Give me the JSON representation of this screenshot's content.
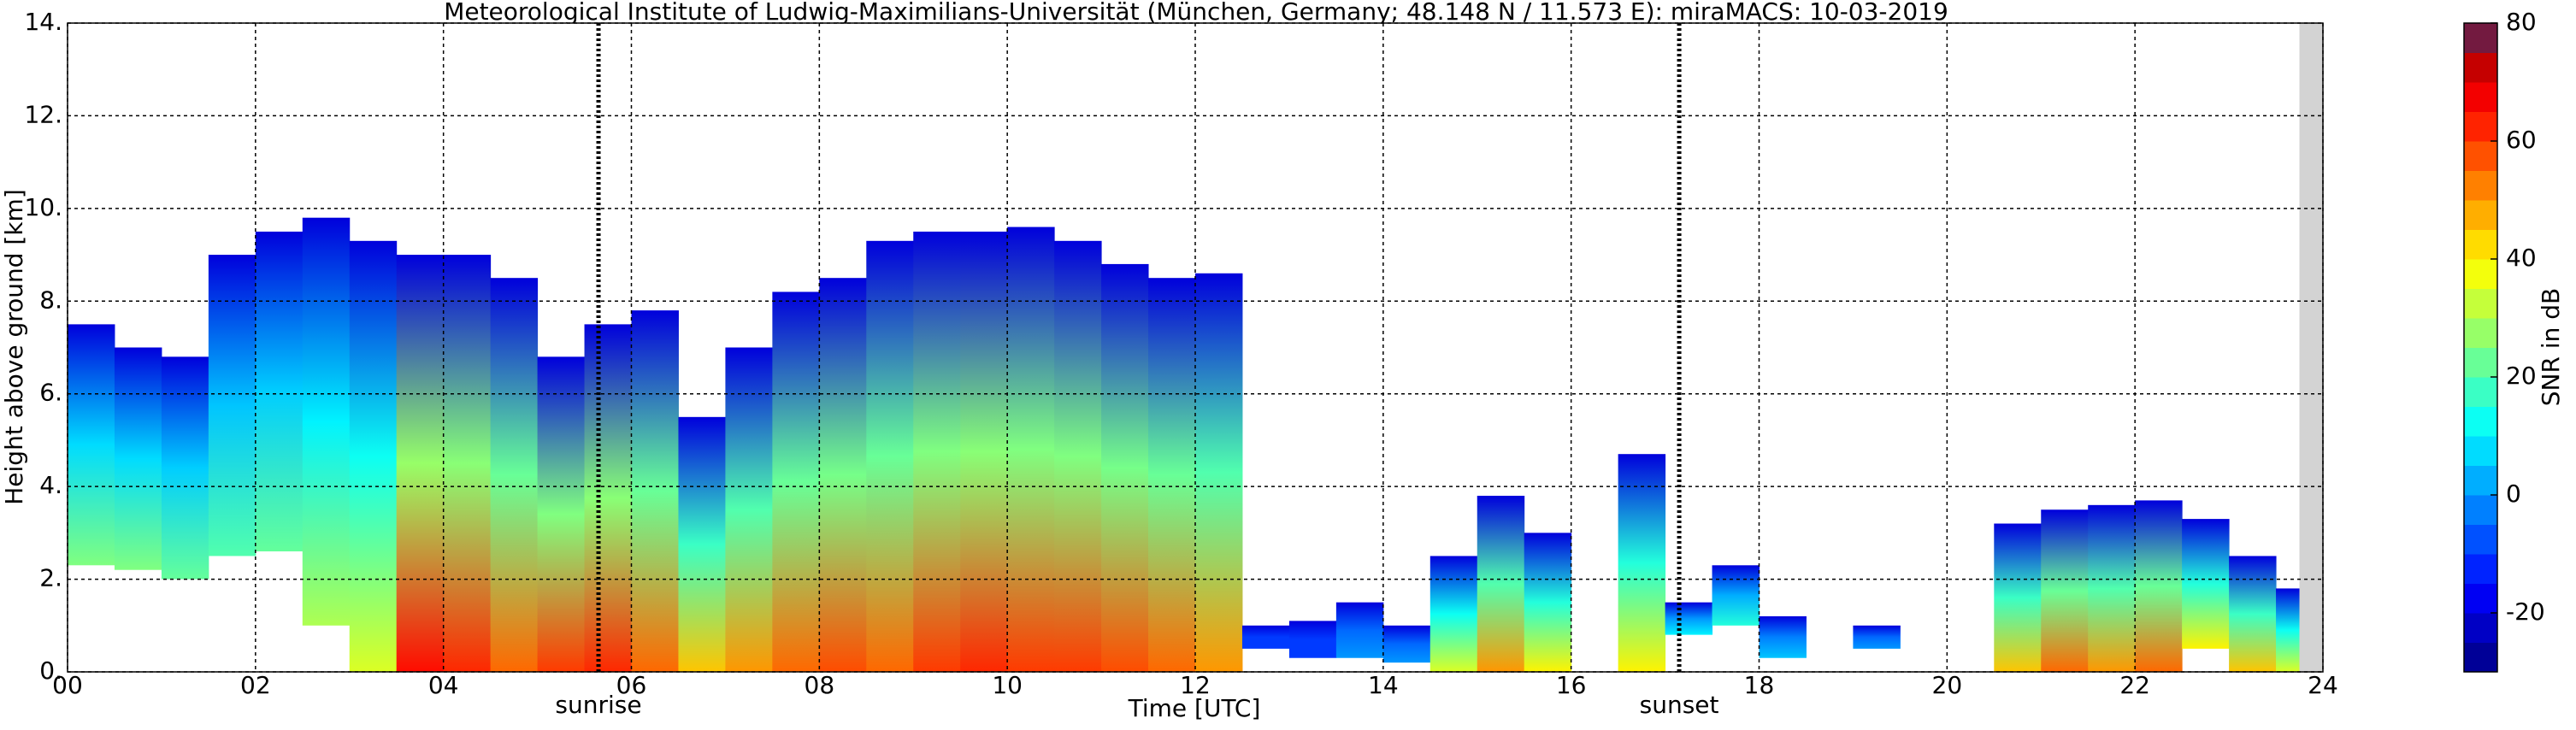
{
  "chart_data": {
    "type": "time-height",
    "title": "Meteorological Institute of Ludwig-Maximilians-Universität (München, Germany; 48.148 N / 11.573 E):    miraMACS: 10-03-2019",
    "xlabel": "Time [UTC]",
    "ylabel": "Height above ground [km]",
    "colorbar_label": "SNR in dB",
    "xlim": [
      0,
      24
    ],
    "xticks": [
      {
        "value": 0,
        "label": "00"
      },
      {
        "value": 2,
        "label": "02"
      },
      {
        "value": 4,
        "label": "04"
      },
      {
        "value": 6,
        "label": "06"
      },
      {
        "value": 8,
        "label": "08"
      },
      {
        "value": 10,
        "label": "10"
      },
      {
        "value": 12,
        "label": "12"
      },
      {
        "value": 14,
        "label": "14"
      },
      {
        "value": 16,
        "label": "16"
      },
      {
        "value": 18,
        "label": "18"
      },
      {
        "value": 20,
        "label": "20"
      },
      {
        "value": 22,
        "label": "22"
      },
      {
        "value": 24,
        "label": "24"
      }
    ],
    "ylim": [
      0,
      14
    ],
    "yticks": [
      {
        "value": 0,
        "label": "0."
      },
      {
        "value": 2,
        "label": "2."
      },
      {
        "value": 4,
        "label": "4."
      },
      {
        "value": 6,
        "label": "6."
      },
      {
        "value": 8,
        "label": "8."
      },
      {
        "value": 10,
        "label": "10."
      },
      {
        "value": 12,
        "label": "12."
      },
      {
        "value": 14,
        "label": "14."
      }
    ],
    "clim": [
      -30,
      80
    ],
    "cticks": [
      -20,
      0,
      20,
      40,
      60,
      80
    ],
    "grid": true,
    "column_width": 0.5,
    "x": [
      0,
      0.5,
      1,
      1.5,
      2,
      2.5,
      3,
      3.5,
      4,
      4.5,
      5,
      5.5,
      6,
      6.5,
      7,
      7.5,
      8,
      8.5,
      9,
      9.5,
      10,
      10.5,
      11,
      11.5,
      12,
      12.5,
      13,
      13.5,
      14,
      14.5,
      15,
      15.5,
      16,
      16.5,
      17,
      17.5,
      18,
      18.5,
      19,
      19.5,
      20,
      20.5,
      21,
      21.5,
      22,
      22.5,
      23,
      23.5
    ],
    "cloud_top": [
      7.5,
      7.0,
      6.8,
      9.0,
      9.5,
      9.8,
      9.3,
      9.0,
      9.0,
      8.5,
      6.8,
      7.5,
      7.8,
      5.5,
      7.0,
      8.2,
      8.5,
      9.3,
      9.5,
      9.5,
      9.6,
      9.3,
      8.8,
      8.5,
      8.6,
      1.0,
      1.1,
      1.5,
      1.0,
      2.5,
      3.8,
      3.0,
      null,
      4.7,
      1.5,
      2.3,
      1.2,
      null,
      1.0,
      null,
      null,
      3.2,
      3.5,
      3.6,
      3.7,
      3.3,
      2.5,
      1.8
    ],
    "cloud_base": [
      2.3,
      2.2,
      2.0,
      2.5,
      2.6,
      1.0,
      0,
      0,
      0,
      0,
      0,
      0,
      0,
      0,
      0,
      0,
      0,
      0,
      0,
      0,
      0,
      0,
      0,
      0,
      0,
      0.5,
      0.3,
      0.3,
      0.2,
      0,
      0,
      0,
      null,
      0,
      0.8,
      1.0,
      0.3,
      null,
      0.5,
      null,
      null,
      0,
      0,
      0,
      0,
      0.5,
      0,
      0
    ],
    "max_snr": [
      25,
      25,
      22,
      20,
      22,
      30,
      35,
      65,
      62,
      55,
      60,
      62,
      55,
      45,
      50,
      55,
      58,
      55,
      60,
      62,
      60,
      60,
      58,
      55,
      50,
      -10,
      -10,
      0,
      0,
      35,
      50,
      40,
      null,
      40,
      10,
      15,
      5,
      null,
      0,
      null,
      null,
      45,
      55,
      50,
      55,
      40,
      45,
      35
    ],
    "no_data_range": [
      23.75,
      24
    ],
    "annotations": [
      {
        "label": "sunrise",
        "x": 5.65
      },
      {
        "label": "sunset",
        "x": 17.15
      }
    ]
  }
}
